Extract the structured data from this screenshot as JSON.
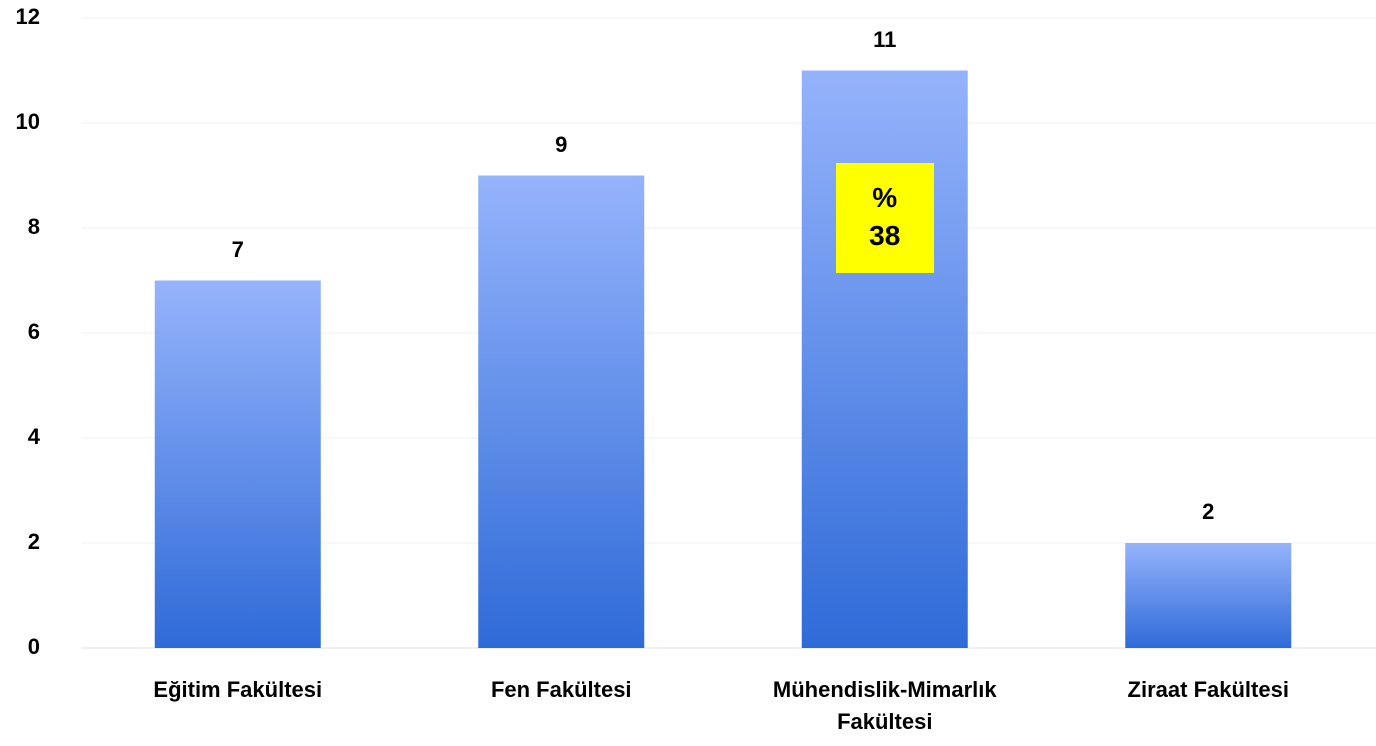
{
  "chart_data": {
    "type": "bar",
    "categories": [
      "Eğitim Fakültesi",
      "Fen Fakültesi",
      "Mühendislik-Mimarlık Fakültesi",
      "Ziraat Fakültesi"
    ],
    "values": [
      7,
      9,
      11,
      2
    ],
    "color": [
      "#95b3fb",
      "#2f6bd8"
    ],
    "ylim": [
      0,
      12
    ],
    "yticks": [
      0,
      2,
      4,
      6,
      8,
      10,
      12
    ],
    "grid": true,
    "annotation": {
      "lines": [
        "%",
        "38"
      ],
      "category": 2
    }
  }
}
